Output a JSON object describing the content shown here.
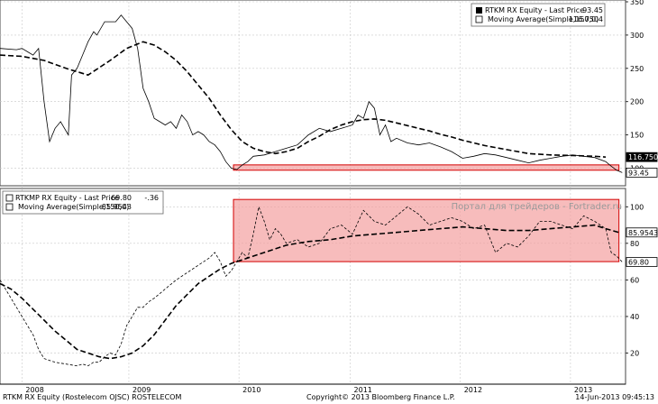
{
  "chart_data": [
    {
      "type": "line",
      "panel": "top",
      "ylim": [
        75,
        350
      ],
      "yticks": [
        100,
        150,
        200,
        250,
        300,
        350
      ],
      "legend": {
        "placement": "top-right",
        "entries": [
          {
            "label": "RTKM RX Equity - Last Price",
            "value": "93.45"
          },
          {
            "label": "Moving Average(Simple,150,0)",
            "value": "116.7504"
          }
        ]
      },
      "series": [
        {
          "name": "RTKM RX Equity - Last Price",
          "style": "solid",
          "last_value": 93.45,
          "x": [
            2007.8,
            2007.95,
            2008.0,
            2008.05,
            2008.1,
            2008.15,
            2008.2,
            2008.25,
            2008.3,
            2008.35,
            2008.42,
            2008.45,
            2008.5,
            2008.55,
            2008.6,
            2008.65,
            2008.68,
            2008.75,
            2008.8,
            2008.85,
            2008.9,
            2008.95,
            2009.0,
            2009.05,
            2009.1,
            2009.15,
            2009.2,
            2009.25,
            2009.3,
            2009.35,
            2009.4,
            2009.45,
            2009.5,
            2009.55,
            2009.6,
            2009.65,
            2009.7,
            2009.75,
            2009.8,
            2009.85,
            2009.9,
            2009.95,
            2010.0,
            2010.05,
            2010.1,
            2010.2,
            2010.3,
            2010.4,
            2010.5,
            2010.6,
            2010.7,
            2010.8,
            2010.9,
            2011.0,
            2011.05,
            2011.1,
            2011.15,
            2011.2,
            2011.25,
            2011.3,
            2011.35,
            2011.4,
            2011.5,
            2011.6,
            2011.7,
            2011.8,
            2011.9,
            2012.0,
            2012.1,
            2012.2,
            2012.3,
            2012.4,
            2012.5,
            2012.6,
            2012.7,
            2012.8,
            2012.9,
            2013.0,
            2013.1,
            2013.2,
            2013.3,
            2013.35,
            2013.4,
            2013.45
          ],
          "y": [
            280,
            278,
            280,
            275,
            270,
            280,
            200,
            140,
            160,
            170,
            150,
            240,
            250,
            270,
            290,
            305,
            300,
            320,
            320,
            320,
            330,
            320,
            310,
            280,
            220,
            200,
            175,
            170,
            165,
            170,
            160,
            180,
            170,
            150,
            155,
            150,
            140,
            135,
            125,
            110,
            100,
            98,
            105,
            110,
            118,
            120,
            125,
            130,
            135,
            150,
            160,
            155,
            160,
            165,
            180,
            175,
            200,
            190,
            150,
            165,
            140,
            145,
            138,
            135,
            138,
            132,
            125,
            115,
            118,
            122,
            120,
            116,
            112,
            108,
            112,
            115,
            118,
            120,
            118,
            116,
            110,
            103,
            97,
            93.45
          ]
        },
        {
          "name": "Moving Average(Simple,150,0)",
          "style": "dashed",
          "last_value": 116.7504,
          "x": [
            2007.8,
            2008.0,
            2008.2,
            2008.4,
            2008.6,
            2008.8,
            2008.95,
            2009.1,
            2009.2,
            2009.3,
            2009.4,
            2009.5,
            2009.6,
            2009.7,
            2009.8,
            2009.9,
            2010.0,
            2010.1,
            2010.2,
            2010.3,
            2010.4,
            2010.5,
            2010.6,
            2010.7,
            2010.8,
            2010.9,
            2011.0,
            2011.1,
            2011.2,
            2011.3,
            2011.4,
            2011.5,
            2011.6,
            2011.7,
            2011.8,
            2011.9,
            2012.0,
            2012.2,
            2012.4,
            2012.6,
            2012.8,
            2013.0,
            2013.2,
            2013.3
          ],
          "y": [
            270,
            268,
            262,
            250,
            240,
            262,
            280,
            290,
            285,
            275,
            262,
            245,
            225,
            205,
            180,
            158,
            140,
            130,
            125,
            122,
            125,
            130,
            140,
            148,
            158,
            165,
            170,
            173,
            174,
            172,
            168,
            164,
            160,
            156,
            151,
            147,
            142,
            134,
            128,
            122,
            120,
            119,
            118,
            116.75
          ]
        }
      ],
      "annotations": [
        {
          "type": "band",
          "x0": 2009.92,
          "x1": 2013.42,
          "y0": 97,
          "y1": 105,
          "color": "#d40000"
        }
      ]
    },
    {
      "type": "line",
      "panel": "bottom",
      "ylim": [
        3,
        110
      ],
      "yticks": [
        20,
        40,
        60,
        80,
        100
      ],
      "legend": {
        "placement": "top-left",
        "entries": [
          {
            "label": "RTKMP RX Equity - Last Price",
            "value": "69.80",
            "change": "-.36"
          },
          {
            "label": "Moving Average(Simple,150,0)",
            "value": "85.9543"
          }
        ]
      },
      "series": [
        {
          "name": "RTKMP RX Equity - Last Price",
          "style": "dashed",
          "last_value": 69.8,
          "x": [
            2007.8,
            2007.9,
            2008.0,
            2008.05,
            2008.1,
            2008.15,
            2008.2,
            2008.3,
            2008.4,
            2008.5,
            2008.55,
            2008.6,
            2008.65,
            2008.7,
            2008.75,
            2008.8,
            2008.85,
            2008.9,
            2008.95,
            2009.0,
            2009.05,
            2009.1,
            2009.15,
            2009.2,
            2009.3,
            2009.4,
            2009.5,
            2009.6,
            2009.7,
            2009.75,
            2009.8,
            2009.85,
            2009.9,
            2009.95,
            2010.0,
            2010.05,
            2010.1,
            2010.15,
            2010.2,
            2010.25,
            2010.3,
            2010.35,
            2010.4,
            2010.5,
            2010.6,
            2010.7,
            2010.8,
            2010.9,
            2011.0,
            2011.1,
            2011.2,
            2011.3,
            2011.4,
            2011.5,
            2011.6,
            2011.7,
            2011.8,
            2011.9,
            2012.0,
            2012.1,
            2012.2,
            2012.3,
            2012.4,
            2012.5,
            2012.6,
            2012.7,
            2012.8,
            2012.9,
            2013.0,
            2013.1,
            2013.2,
            2013.3,
            2013.35,
            2013.4,
            2013.45
          ],
          "y": [
            60,
            50,
            40,
            35,
            30,
            22,
            17,
            15,
            14,
            13,
            14,
            13,
            15,
            15,
            18,
            20,
            19,
            25,
            35,
            40,
            45,
            45,
            48,
            50,
            55,
            60,
            64,
            68,
            72,
            75,
            70,
            62,
            65,
            70,
            75,
            72,
            85,
            100,
            92,
            82,
            88,
            85,
            80,
            82,
            78,
            80,
            88,
            90,
            85,
            98,
            92,
            90,
            95,
            100,
            96,
            90,
            92,
            94,
            92,
            88,
            90,
            75,
            80,
            78,
            84,
            92,
            92,
            90,
            88,
            95,
            92,
            88,
            75,
            73,
            69.8
          ]
        },
        {
          "name": "Moving Average(Simple,150,0)",
          "style": "dashed",
          "last_value": 85.9543,
          "x": [
            2007.8,
            2007.9,
            2008.0,
            2008.1,
            2008.2,
            2008.3,
            2008.4,
            2008.5,
            2008.6,
            2008.7,
            2008.8,
            2008.9,
            2009.0,
            2009.1,
            2009.2,
            2009.3,
            2009.4,
            2009.5,
            2009.6,
            2009.7,
            2009.8,
            2009.9,
            2010.0,
            2010.1,
            2010.2,
            2010.3,
            2010.4,
            2010.5,
            2010.6,
            2010.8,
            2011.0,
            2011.2,
            2011.4,
            2011.6,
            2011.8,
            2012.0,
            2012.2,
            2012.4,
            2012.6,
            2012.8,
            2013.0,
            2013.2,
            2013.3,
            2013.42
          ],
          "y": [
            58,
            55,
            50,
            44,
            38,
            32,
            27,
            22,
            20,
            18,
            17,
            18,
            20,
            24,
            30,
            38,
            46,
            52,
            58,
            62,
            66,
            69,
            71,
            73,
            75,
            77,
            79,
            80,
            81,
            82,
            84,
            85,
            86,
            87,
            88,
            89,
            88,
            87,
            87,
            88,
            89,
            90,
            88,
            85.95
          ]
        }
      ],
      "annotations": [
        {
          "type": "band",
          "x0": 2009.92,
          "x1": 2013.42,
          "y0": 70,
          "y1": 104,
          "color": "#d40000"
        }
      ]
    }
  ],
  "x_axis": {
    "range": [
      2007.8,
      2013.48
    ],
    "year_labels": [
      {
        "label": "2008",
        "x": 2008.0
      },
      {
        "label": "2009",
        "x": 2008.97
      },
      {
        "label": "2010",
        "x": 2009.97
      },
      {
        "label": "2011",
        "x": 2010.98
      },
      {
        "label": "2012",
        "x": 2011.98
      },
      {
        "label": "2013",
        "x": 2012.98
      }
    ]
  },
  "watermark": "Портал для трейдеров - Fortrader.ru",
  "footer": {
    "left": "RTKM RX Equity (Rostelecom OJSC) ROSTELECOM",
    "center": "Copyright© 2013 Bloomberg Finance L.P.",
    "right": "14-Jun-2013 09:45:13"
  },
  "colors": {
    "price_line": "#000000",
    "ma_line": "#000000",
    "band_fill": "#f4a0a0",
    "band_stroke": "#d40000",
    "grid": "#c8c8c8"
  }
}
